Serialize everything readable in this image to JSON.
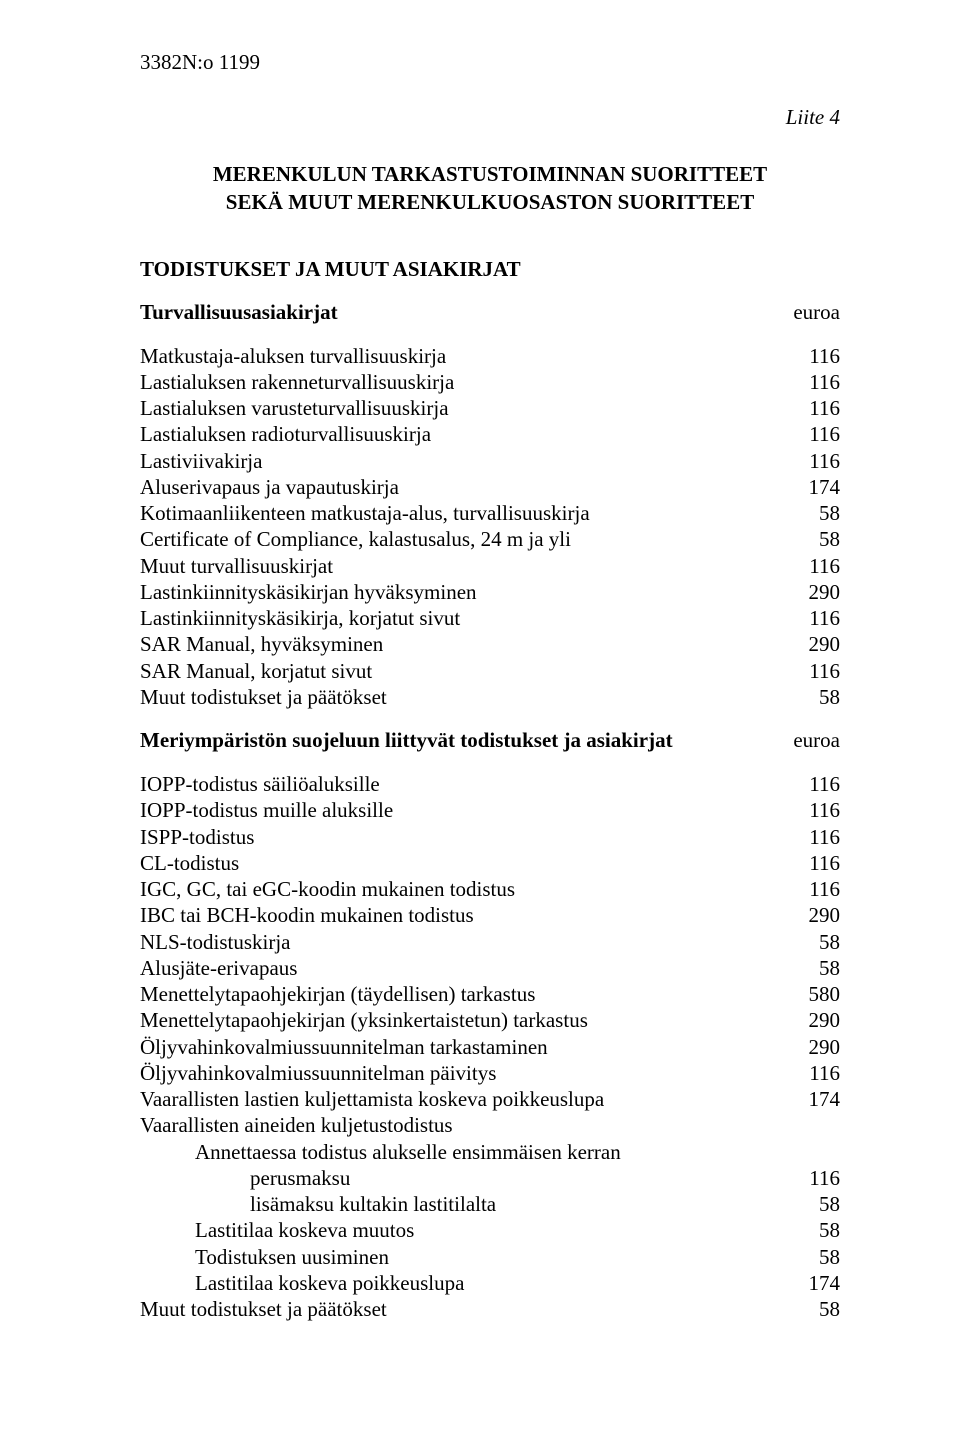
{
  "header": {
    "page_no": "3382",
    "doc_no": "N:o 1199"
  },
  "annex": "Liite 4",
  "title_line1": "MERENKULUN TARKASTUSTOIMINNAN SUORITTEET",
  "title_line2": "SEKÄ MUUT MERENKULKUOSASTON SUORITTEET",
  "section1_title": "TODISTUKSET JA MUUT ASIAKIRJAT",
  "safety": {
    "heading": "Turvallisuusasiakirjat",
    "unit": "euroa",
    "rows": [
      {
        "label": "Matkustaja-aluksen turvallisuuskirja",
        "value": "116"
      },
      {
        "label": "Lastialuksen rakenneturvallisuuskirja",
        "value": "116"
      },
      {
        "label": "Lastialuksen varusteturvallisuuskirja",
        "value": "116"
      },
      {
        "label": "Lastialuksen radioturvallisuuskirja",
        "value": "116"
      },
      {
        "label": "Lastiviivakirja",
        "value": "116"
      },
      {
        "label": "Aluserivapaus ja vapautuskirja",
        "value": "174"
      },
      {
        "label": "Kotimaanliikenteen matkustaja-alus, turvallisuuskirja",
        "value": "58"
      },
      {
        "label": "Certificate of Compliance, kalastusalus, 24 m ja yli",
        "value": "58"
      },
      {
        "label": "Muut turvallisuuskirjat",
        "value": "116"
      },
      {
        "label": "Lastinkiinnityskäsikirjan hyväksyminen",
        "value": "290"
      },
      {
        "label": "Lastinkiinnityskäsikirja, korjatut sivut",
        "value": "116"
      },
      {
        "label": "SAR Manual, hyväksyminen",
        "value": "290"
      },
      {
        "label": "SAR Manual, korjatut sivut",
        "value": "116"
      },
      {
        "label": "Muut todistukset ja päätökset",
        "value": "58"
      }
    ]
  },
  "marine": {
    "heading": "Meriympäristön suojeluun liittyvät todistukset ja asiakirjat",
    "unit": "euroa",
    "rows": [
      {
        "label": "IOPP-todistus säiliöaluksille",
        "value": "116"
      },
      {
        "label": "IOPP-todistus muille aluksille",
        "value": "116"
      },
      {
        "label": "ISPP-todistus",
        "value": "116"
      },
      {
        "label": "CL-todistus",
        "value": "116"
      },
      {
        "label": "IGC, GC, tai eGC-koodin mukainen todistus",
        "value": "116"
      },
      {
        "label": "IBC tai BCH-koodin mukainen todistus",
        "value": "290"
      },
      {
        "label": "NLS-todistuskirja",
        "value": "58"
      },
      {
        "label": "Alusjäte-erivapaus",
        "value": "58"
      },
      {
        "label": "Menettelytapaohjekirjan (täydellisen) tarkastus",
        "value": "580"
      },
      {
        "label": "Menettelytapaohjekirjan (yksinkertaistetun) tarkastus",
        "value": "290"
      },
      {
        "label": "Öljyvahinkovalmiussuunnitelman tarkastaminen",
        "value": "290"
      },
      {
        "label": "Öljyvahinkovalmiussuunnitelman päivitys",
        "value": "116"
      },
      {
        "label": "Vaarallisten lastien kuljettamista koskeva poikkeuslupa",
        "value": "174"
      }
    ],
    "danger_heading": "Vaarallisten aineiden kuljetustodistus",
    "danger_sub1": "Annettaessa todistus alukselle ensimmäisen kerran",
    "danger_rows1": [
      {
        "label": "perusmaksu",
        "value": "116"
      },
      {
        "label": "lisämaksu kultakin lastitilalta",
        "value": "58"
      }
    ],
    "danger_rows2": [
      {
        "label": "Lastitilaa koskeva muutos",
        "value": "58"
      },
      {
        "label": "Todistuksen uusiminen",
        "value": "58"
      },
      {
        "label": "Lastitilaa koskeva poikkeuslupa",
        "value": "174"
      }
    ],
    "last_row": {
      "label": "Muut todistukset ja päätökset",
      "value": "58"
    }
  }
}
